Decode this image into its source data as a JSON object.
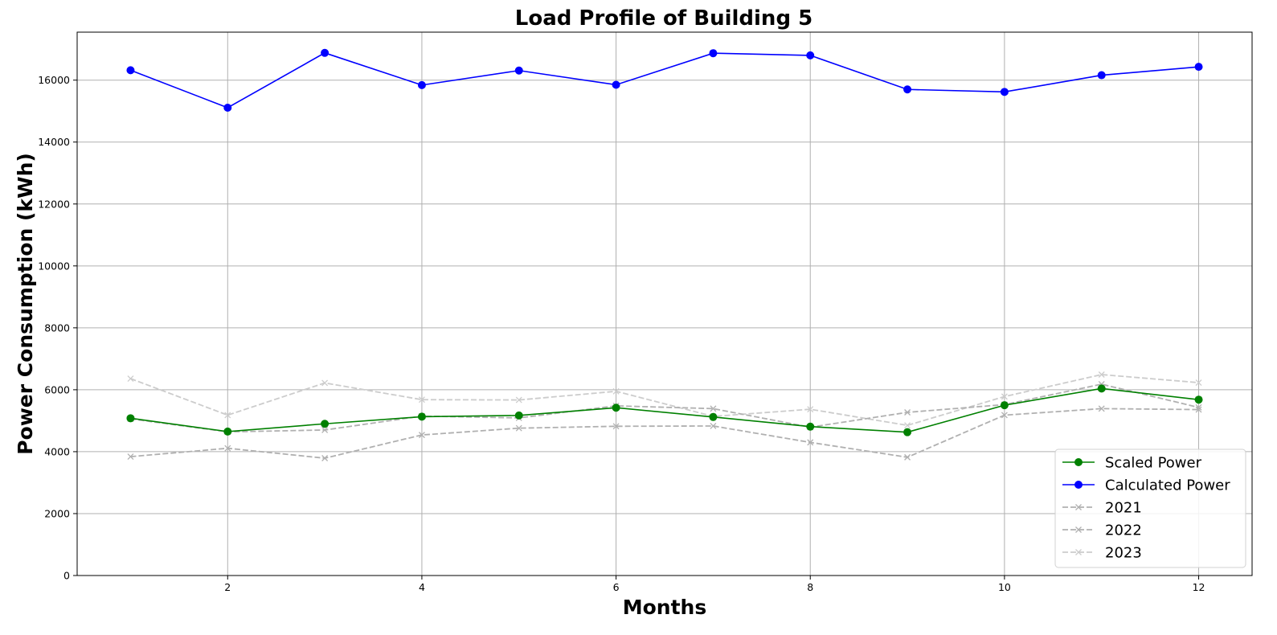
{
  "chart_data": {
    "type": "line",
    "title": "Load Profile of Building 5",
    "xlabel": "Months",
    "ylabel": "Power Consumption (kWh)",
    "xlim": [
      0.45,
      12.55
    ],
    "ylim": [
      0,
      17550
    ],
    "xticks": [
      2,
      4,
      6,
      8,
      10,
      12
    ],
    "yticks": [
      0,
      2000,
      4000,
      6000,
      8000,
      10000,
      12000,
      14000,
      16000
    ],
    "grid": true,
    "legend_position": "lower-right",
    "x": [
      1,
      2,
      3,
      4,
      5,
      6,
      7,
      8,
      9,
      10,
      11,
      12
    ],
    "series": [
      {
        "name": "Scaled Power",
        "color": "#008000",
        "style": "solid",
        "marker": "circle",
        "values": [
          5080,
          4650,
          4900,
          5130,
          5170,
          5420,
          5120,
          4810,
          4630,
          5500,
          6040,
          5680
        ]
      },
      {
        "name": "Calculated Power",
        "color": "#0000ff",
        "style": "solid",
        "marker": "circle",
        "values": [
          16320,
          15110,
          16880,
          15840,
          16310,
          15850,
          16870,
          16800,
          15700,
          15620,
          16160,
          16430
        ]
      },
      {
        "name": "2021",
        "color": "#b0b0b0",
        "style": "dashed",
        "marker": "x",
        "values": [
          3840,
          4110,
          3790,
          4540,
          4760,
          4820,
          4830,
          4300,
          3820,
          5180,
          5390,
          5360
        ]
      },
      {
        "name": "2022",
        "color": "#b0b0b0",
        "style": "dashed",
        "marker": "x",
        "values": [
          5060,
          4640,
          4700,
          5150,
          5090,
          5480,
          5390,
          4790,
          5270,
          5520,
          6180,
          5430
        ]
      },
      {
        "name": "2023",
        "color": "#cccccc",
        "style": "dashed",
        "marker": "x",
        "values": [
          6360,
          5180,
          6220,
          5680,
          5670,
          5950,
          5140,
          5370,
          4850,
          5780,
          6490,
          6230
        ]
      }
    ]
  }
}
